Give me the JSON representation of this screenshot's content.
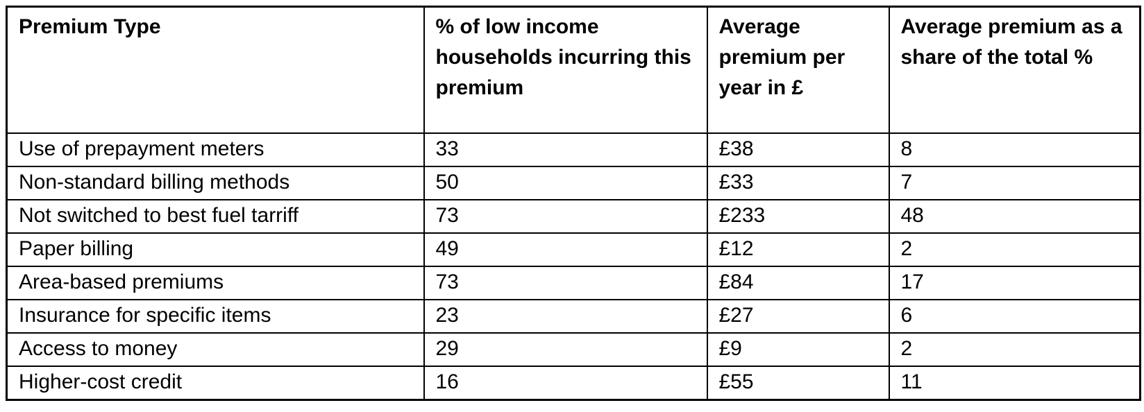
{
  "table": {
    "headers": [
      "Premium Type",
      "% of low income households incurring this premium",
      "Average premium per year in £",
      "Average premium as a share of the total %"
    ],
    "rows": [
      [
        "Use of prepayment meters",
        "33",
        "£38",
        "8"
      ],
      [
        "Non-standard billing methods",
        "50",
        "£33",
        "7"
      ],
      [
        "Not switched to best fuel tarriff",
        "73",
        "£233",
        "48"
      ],
      [
        "Paper billing",
        "49",
        "£12",
        "2"
      ],
      [
        "Area-based premiums",
        "73",
        "£84",
        "17"
      ],
      [
        "Insurance for specific items",
        "23",
        "£27",
        "6"
      ],
      [
        "Access to money",
        "29",
        "£9",
        "2"
      ],
      [
        "Higher-cost credit",
        "16",
        "£55",
        "11"
      ]
    ]
  },
  "colors": {
    "border": "#000000",
    "background": "#ffffff",
    "text": "#000000"
  }
}
